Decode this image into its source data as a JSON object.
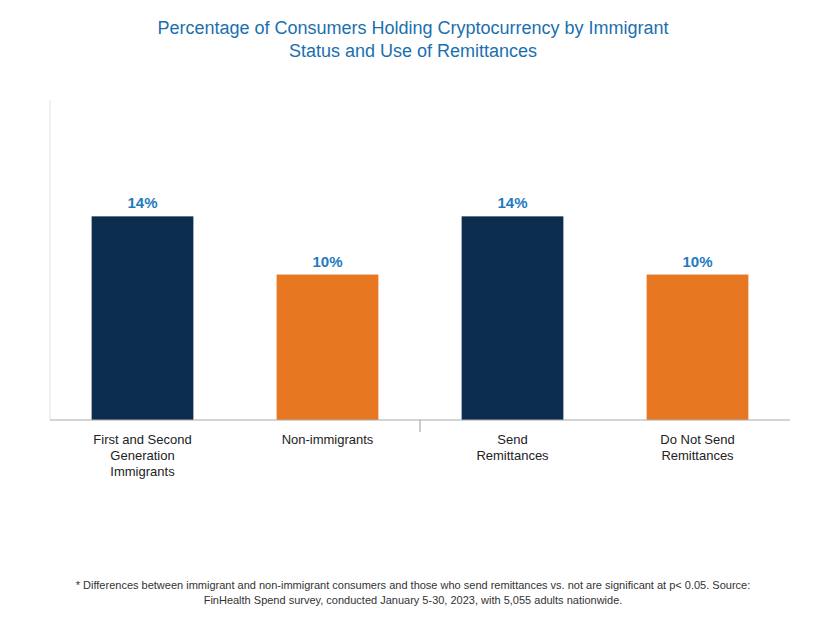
{
  "chart_data": {
    "type": "bar",
    "title": "Percentage of Consumers Holding Cryptocurrency by Immigrant\nStatus and Use of Remittances",
    "categories": [
      "First and Second\nGeneration\nImmigrants",
      "Non-immigrants",
      "Send\nRemittances",
      "Do Not Send\nRemittances"
    ],
    "values": [
      14,
      10,
      14,
      10
    ],
    "value_labels": [
      "14%",
      "10%",
      "14%",
      "10%"
    ],
    "data_labels": true,
    "colors": [
      "#0d2d4e",
      "#e87722",
      "#0d2d4e",
      "#e87722"
    ],
    "ylim": [
      0,
      22
    ],
    "tick_labels": "x",
    "grid": false,
    "annotations": [
      "* Differences between immigrant and non-immigrant consumers and those who send remittances vs. not are significant at p< 0.05. Source:\nFinHealth Spend survey, conducted January 5-30, 2023, with 5,055 adults nationwide."
    ]
  }
}
